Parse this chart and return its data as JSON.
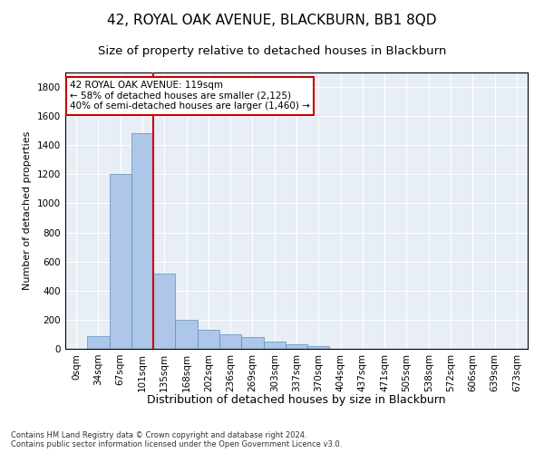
{
  "title1": "42, ROYAL OAK AVENUE, BLACKBURN, BB1 8QD",
  "title2": "Size of property relative to detached houses in Blackburn",
  "xlabel": "Distribution of detached houses by size in Blackburn",
  "ylabel": "Number of detached properties",
  "bin_labels": [
    "0sqm",
    "34sqm",
    "67sqm",
    "101sqm",
    "135sqm",
    "168sqm",
    "202sqm",
    "236sqm",
    "269sqm",
    "303sqm",
    "337sqm",
    "370sqm",
    "404sqm",
    "437sqm",
    "471sqm",
    "505sqm",
    "538sqm",
    "572sqm",
    "606sqm",
    "639sqm",
    "673sqm"
  ],
  "bar_values": [
    0,
    90,
    1200,
    1480,
    520,
    200,
    130,
    100,
    80,
    50,
    30,
    20,
    0,
    0,
    0,
    0,
    0,
    0,
    0,
    0,
    0
  ],
  "bar_color": "#aec6e8",
  "bar_edge_color": "#5a8fc0",
  "vline_color": "#cc0000",
  "annotation_box_text": "42 ROYAL OAK AVENUE: 119sqm\n← 58% of detached houses are smaller (2,125)\n40% of semi-detached houses are larger (1,460) →",
  "annotation_box_color": "#cc0000",
  "ylim": [
    0,
    1900
  ],
  "yticks": [
    0,
    200,
    400,
    600,
    800,
    1000,
    1200,
    1400,
    1600,
    1800
  ],
  "background_color": "#e8eef5",
  "footnote": "Contains HM Land Registry data © Crown copyright and database right 2024.\nContains public sector information licensed under the Open Government Licence v3.0.",
  "title1_fontsize": 11,
  "title2_fontsize": 9.5,
  "xlabel_fontsize": 9,
  "ylabel_fontsize": 8,
  "tick_fontsize": 7.5,
  "annot_fontsize": 7.5,
  "footnote_fontsize": 6
}
